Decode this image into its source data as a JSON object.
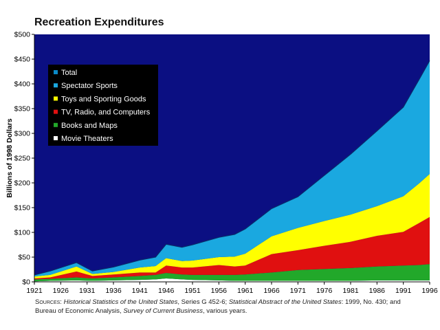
{
  "chart_data": {
    "type": "area",
    "title": "Recreation Expenditures",
    "xlabel": "",
    "ylabel": "Billions of 1998 Dollars",
    "xlim": [
      1921,
      1996
    ],
    "ylim": [
      0,
      500
    ],
    "y_ticks": [
      "$0",
      "$50",
      "$100",
      "$150",
      "$200",
      "$250",
      "$300",
      "$350",
      "$400",
      "$450",
      "$500"
    ],
    "x_ticks": [
      "1921",
      "1926",
      "1931",
      "1936",
      "1941",
      "1946",
      "1951",
      "1956",
      "1961",
      "1966",
      "1971",
      "1976",
      "1981",
      "1986",
      "1991",
      "1996"
    ],
    "legend_position": "top-left",
    "x": [
      1921,
      1924,
      1929,
      1932,
      1936,
      1941,
      1944,
      1946,
      1949,
      1951,
      1956,
      1959,
      1961,
      1966,
      1971,
      1976,
      1981,
      1986,
      1991,
      1994,
      1996
    ],
    "series": [
      {
        "name": "Movie Theaters",
        "color": "#ffffff",
        "values": [
          1,
          2,
          3,
          2,
          3,
          4,
          5,
          7,
          5,
          4,
          3,
          2,
          2,
          2,
          2,
          2,
          2,
          3,
          3,
          3,
          3
        ]
      },
      {
        "name": "Books and Maps",
        "color": "#22a82a",
        "values": [
          4,
          4,
          6,
          5,
          6,
          8,
          9,
          11,
          10,
          10,
          11,
          12,
          13,
          17,
          22,
          24,
          26,
          28,
          30,
          31,
          33
        ]
      },
      {
        "name": "TV, Radio, and Computers",
        "color": "#e01010",
        "values": [
          2,
          3,
          12,
          5,
          6,
          7,
          5,
          15,
          14,
          15,
          20,
          17,
          18,
          37,
          40,
          47,
          53,
          62,
          68,
          85,
          95
        ]
      },
      {
        "name": "Toys and Sporting Goods",
        "color": "#ffff00",
        "values": [
          4,
          5,
          10,
          4,
          5,
          10,
          13,
          15,
          13,
          14,
          16,
          20,
          24,
          36,
          45,
          50,
          55,
          60,
          72,
          80,
          87
        ]
      },
      {
        "name": "Spectator Sports",
        "color": "#1aa8e0",
        "values": [
          3,
          8,
          8,
          6,
          10,
          15,
          18,
          28,
          28,
          32,
          40,
          45,
          50,
          56,
          63,
          92,
          122,
          152,
          180,
          210,
          229
        ]
      }
    ],
    "total": {
      "name": "Total",
      "color": "#0a8ac8",
      "values": [
        14,
        22,
        39,
        22,
        30,
        44,
        50,
        76,
        70,
        75,
        90,
        96,
        107,
        148,
        172,
        215,
        258,
        305,
        353,
        409,
        447
      ]
    }
  },
  "colors": {
    "plot_background": "#0b0f82",
    "legend_background": "#000000"
  },
  "sources": {
    "label": "Sources",
    "part1_italic": "Historical Statistics of the United States",
    "part2": ", Series G 452-6; ",
    "part3_italic": "Statistical Abstract of the United States",
    "part4": ": 1999, No. 430; and Bureau of Economic Analysis, ",
    "part5_italic": "Survey of Current Business",
    "part6": ", various years."
  }
}
